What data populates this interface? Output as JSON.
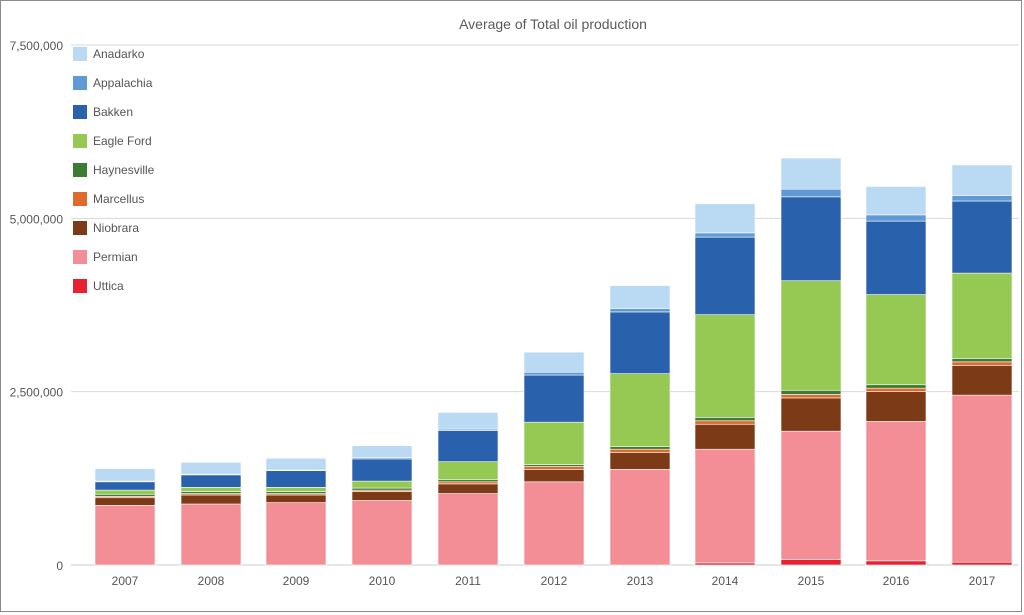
{
  "chart_data": {
    "type": "bar",
    "stacked": true,
    "title": "Average of Total oil production",
    "xlabel": "",
    "ylabel": "",
    "categories": [
      "2007",
      "2008",
      "2009",
      "2010",
      "2011",
      "2012",
      "2013",
      "2014",
      "2015",
      "2016",
      "2017"
    ],
    "ylim": [
      0,
      7500000
    ],
    "y_ticks": [
      0,
      2500000,
      5000000,
      7500000
    ],
    "y_tick_labels": [
      "0",
      "2,500,000",
      "5,000,000",
      "7,500,000"
    ],
    "grid": true,
    "legend_position": "top-left",
    "series": [
      {
        "name": "Uttica",
        "color": "#e8202f",
        "values": [
          0,
          0,
          0,
          0,
          0,
          0,
          0,
          30000,
          80000,
          60000,
          40000
        ]
      },
      {
        "name": "Permian",
        "color": "#f48e96",
        "values": [
          860000,
          880000,
          900000,
          930000,
          1030000,
          1200000,
          1380000,
          1640000,
          1850000,
          2010000,
          2410000
        ]
      },
      {
        "name": "Niobrara",
        "color": "#7d3a17",
        "values": [
          110000,
          130000,
          110000,
          130000,
          140000,
          180000,
          240000,
          360000,
          480000,
          430000,
          430000
        ]
      },
      {
        "name": "Marcellus",
        "color": "#e06a2c",
        "values": [
          20000,
          20000,
          20000,
          20000,
          30000,
          40000,
          50000,
          50000,
          50000,
          50000,
          50000
        ]
      },
      {
        "name": "Haynesville",
        "color": "#3e7b34",
        "values": [
          30000,
          30000,
          30000,
          30000,
          30000,
          30000,
          40000,
          50000,
          60000,
          50000,
          50000
        ]
      },
      {
        "name": "Eagle Ford",
        "color": "#95c953",
        "values": [
          60000,
          60000,
          60000,
          100000,
          260000,
          610000,
          1050000,
          1480000,
          1580000,
          1300000,
          1230000
        ]
      },
      {
        "name": "Bakken",
        "color": "#2a61ad",
        "values": [
          120000,
          180000,
          240000,
          320000,
          450000,
          680000,
          890000,
          1120000,
          1210000,
          1060000,
          1040000
        ]
      },
      {
        "name": "Appalachia",
        "color": "#5f9ad6",
        "values": [
          10000,
          10000,
          10000,
          20000,
          20000,
          40000,
          50000,
          60000,
          110000,
          90000,
          80000
        ]
      },
      {
        "name": "Anadarko",
        "color": "#bad9f2",
        "values": [
          180000,
          170000,
          170000,
          170000,
          240000,
          290000,
          330000,
          420000,
          450000,
          410000,
          440000
        ]
      }
    ],
    "legend_order": [
      "Anadarko",
      "Appalachia",
      "Bakken",
      "Eagle Ford",
      "Haynesville",
      "Marcellus",
      "Niobrara",
      "Permian",
      "Uttica"
    ]
  }
}
